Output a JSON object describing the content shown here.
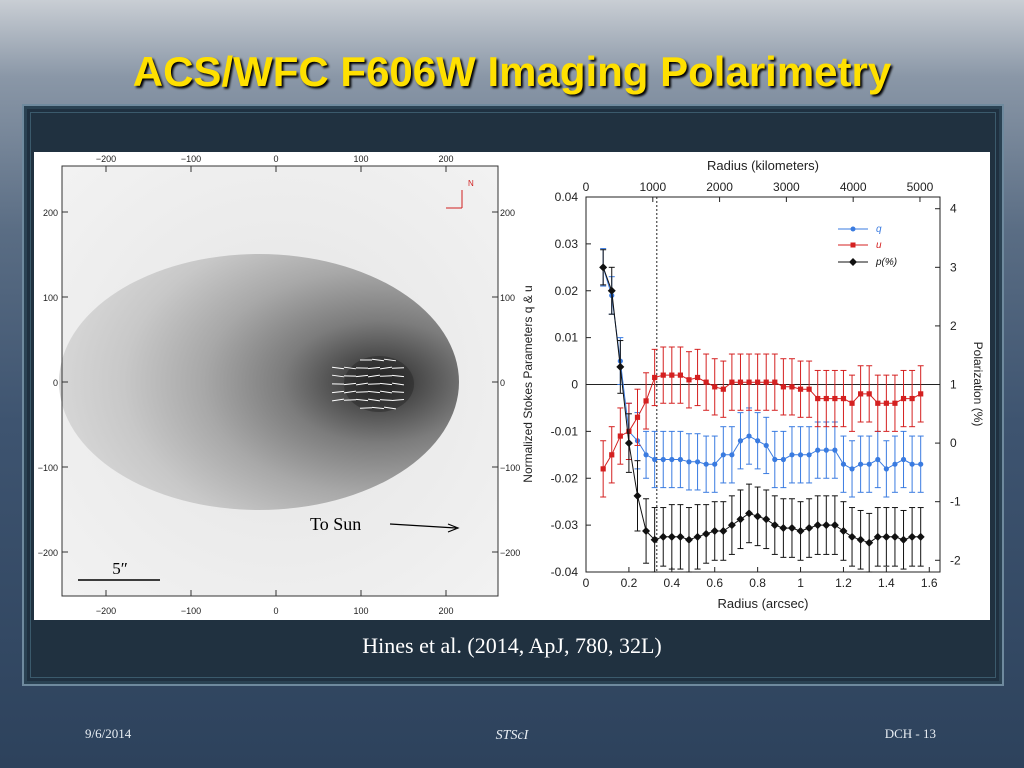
{
  "slide": {
    "title": "ACS/WFC F606W Imaging Polarimetry",
    "citation": "Hines et al. (2014, ApJ, 780, 32L)",
    "footer_date": "9/6/2014",
    "footer_org": "STScI",
    "footer_page": "DCH - 13"
  },
  "image_panel": {
    "top_ticks": [
      "−200",
      "−100",
      "0",
      "100",
      "200"
    ],
    "bottom_ticks": [
      "−200",
      "−100",
      "0",
      "100",
      "200"
    ],
    "left_ticks": [
      "200",
      "100",
      "0",
      "−100",
      "−200"
    ],
    "right_ticks": [
      "200",
      "100",
      "0",
      "−100",
      "−200"
    ],
    "north_label": "N",
    "sun_label": "To Sun",
    "scale_label": "5″"
  },
  "chart_data": {
    "type": "line",
    "xlabel": "Radius (arcsec)",
    "x2label": "Radius (kilometers)",
    "ylabel": "Normalized Stokes Parameters q & u",
    "y2label": "Polarization (%)",
    "xlim": [
      0,
      1.65
    ],
    "ylim": [
      -0.04,
      0.04
    ],
    "x2lim": [
      0,
      5300
    ],
    "y2lim": [
      -2.2,
      4.2
    ],
    "x_ticks": [
      "0",
      "0.2",
      "0.4",
      "0.6",
      "0.8",
      "1",
      "1.2",
      "1.4",
      "1.6"
    ],
    "y_ticks": [
      "0.04",
      "0.03",
      "0.02",
      "0.01",
      "0",
      "-0.01",
      "-0.02",
      "-0.03",
      "-0.04"
    ],
    "x2_ticks": [
      "0",
      "1000",
      "2000",
      "3000",
      "4000",
      "5000"
    ],
    "y2_ticks": [
      "4",
      "3",
      "2",
      "1",
      "0",
      "-1",
      "-2"
    ],
    "vline_x": 0.33,
    "legend_position": "top-right",
    "x": [
      0.08,
      0.12,
      0.16,
      0.2,
      0.24,
      0.28,
      0.32,
      0.36,
      0.4,
      0.44,
      0.48,
      0.52,
      0.56,
      0.6,
      0.64,
      0.68,
      0.72,
      0.76,
      0.8,
      0.84,
      0.88,
      0.92,
      0.96,
      1.0,
      1.04,
      1.08,
      1.12,
      1.16,
      1.2,
      1.24,
      1.28,
      1.32,
      1.36,
      1.4,
      1.44,
      1.48,
      1.52,
      1.56
    ],
    "series": [
      {
        "name": "q",
        "axis": "left",
        "color": "#3a7be0",
        "marker": "circle",
        "values": [
          0.025,
          0.019,
          0.005,
          -0.01,
          -0.012,
          -0.015,
          -0.016,
          -0.016,
          -0.016,
          -0.016,
          -0.0165,
          -0.0165,
          -0.017,
          -0.017,
          -0.015,
          -0.015,
          -0.012,
          -0.011,
          -0.012,
          -0.013,
          -0.016,
          -0.016,
          -0.015,
          -0.015,
          -0.015,
          -0.014,
          -0.014,
          -0.014,
          -0.017,
          -0.018,
          -0.017,
          -0.017,
          -0.016,
          -0.018,
          -0.017,
          -0.016,
          -0.017,
          -0.017
        ],
        "errors": [
          0.004,
          0.004,
          0.005,
          0.006,
          0.006,
          0.005,
          0.006,
          0.006,
          0.006,
          0.006,
          0.006,
          0.006,
          0.006,
          0.006,
          0.006,
          0.006,
          0.006,
          0.006,
          0.006,
          0.006,
          0.006,
          0.006,
          0.006,
          0.006,
          0.006,
          0.006,
          0.006,
          0.006,
          0.006,
          0.006,
          0.006,
          0.006,
          0.006,
          0.006,
          0.006,
          0.006,
          0.006,
          0.006
        ]
      },
      {
        "name": "u",
        "axis": "left",
        "color": "#d42020",
        "marker": "square",
        "values": [
          -0.018,
          -0.015,
          -0.011,
          -0.01,
          -0.007,
          -0.0035,
          0.0015,
          0.002,
          0.002,
          0.002,
          0.001,
          0.0015,
          0.0005,
          -0.0005,
          -0.001,
          0.0005,
          0.0005,
          0.0005,
          0.0005,
          0.0005,
          0.0005,
          -0.0005,
          -0.0005,
          -0.001,
          -0.001,
          -0.003,
          -0.003,
          -0.003,
          -0.003,
          -0.004,
          -0.002,
          -0.002,
          -0.004,
          -0.004,
          -0.004,
          -0.003,
          -0.003,
          -0.002
        ],
        "errors": [
          0.006,
          0.006,
          0.006,
          0.006,
          0.006,
          0.006,
          0.006,
          0.006,
          0.006,
          0.006,
          0.006,
          0.006,
          0.006,
          0.006,
          0.006,
          0.006,
          0.006,
          0.006,
          0.006,
          0.006,
          0.006,
          0.006,
          0.006,
          0.006,
          0.006,
          0.006,
          0.006,
          0.006,
          0.006,
          0.006,
          0.006,
          0.006,
          0.006,
          0.006,
          0.006,
          0.006,
          0.006,
          0.006
        ]
      },
      {
        "name": "p(%)",
        "axis": "right",
        "color": "#111111",
        "marker": "diamond",
        "values": [
          3.0,
          2.6,
          1.3,
          0.0,
          -0.9,
          -1.5,
          -1.65,
          -1.6,
          -1.6,
          -1.6,
          -1.65,
          -1.6,
          -1.55,
          -1.5,
          -1.5,
          -1.4,
          -1.3,
          -1.2,
          -1.25,
          -1.3,
          -1.4,
          -1.45,
          -1.45,
          -1.5,
          -1.45,
          -1.4,
          -1.4,
          -1.4,
          -1.5,
          -1.6,
          -1.65,
          -1.7,
          -1.6,
          -1.6,
          -1.6,
          -1.65,
          -1.6,
          -1.6
        ],
        "errors": [
          0.3,
          0.4,
          0.45,
          0.5,
          0.6,
          0.55,
          0.55,
          0.5,
          0.55,
          0.55,
          0.55,
          0.55,
          0.5,
          0.5,
          0.5,
          0.5,
          0.5,
          0.5,
          0.5,
          0.5,
          0.5,
          0.5,
          0.5,
          0.5,
          0.5,
          0.5,
          0.5,
          0.5,
          0.5,
          0.5,
          0.5,
          0.5,
          0.5,
          0.5,
          0.5,
          0.5,
          0.5,
          0.5
        ]
      }
    ]
  }
}
